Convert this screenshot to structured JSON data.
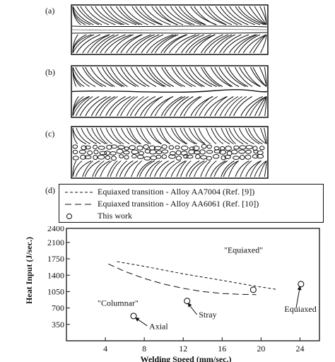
{
  "figure": {
    "panels": [
      {
        "label": "(a)"
      },
      {
        "label": "(b)"
      },
      {
        "label": "(c)"
      },
      {
        "label": "(d)"
      }
    ]
  },
  "legend": {
    "items": [
      {
        "label": "Equiaxed transition - Alloy AA7004 (Ref. [9])",
        "style": "short-dash"
      },
      {
        "label": "Equiaxed transition - Alloy AA6061 (Ref. [10])",
        "style": "long-dash"
      },
      {
        "label": "This work",
        "style": "open-circle"
      }
    ]
  },
  "chart_data": {
    "type": "scatter",
    "xlabel": "Welding Speed (mm/sec.)",
    "ylabel": "Heat Input (J/sec.)",
    "xlim": [
      0,
      26
    ],
    "ylim": [
      0,
      2400
    ],
    "xticks": [
      4,
      8,
      12,
      16,
      20,
      24
    ],
    "yticks": [
      350,
      700,
      1050,
      1400,
      1750,
      2100,
      2400
    ],
    "grid": false,
    "series": [
      {
        "name": "Equiaxed transition - Alloy AA7004 (Ref. [9])",
        "style": "short-dash",
        "x": [
          5.2,
          8,
          12,
          16,
          19,
          21.5
        ],
        "y": [
          1690,
          1590,
          1430,
          1290,
          1180,
          1100
        ]
      },
      {
        "name": "Equiaxed transition - Alloy AA6061 (Ref. [10])",
        "style": "long-dash",
        "x": [
          4.3,
          6,
          8,
          10,
          12,
          14,
          16,
          18,
          19.5
        ],
        "y": [
          1640,
          1480,
          1330,
          1210,
          1120,
          1050,
          1010,
          990,
          985
        ]
      },
      {
        "name": "This work",
        "style": "open-circle",
        "x": [
          6.9,
          12.4,
          19.2,
          24.1
        ],
        "y": [
          530,
          850,
          1090,
          1210
        ]
      }
    ],
    "annotations": [
      {
        "text": "\"Equiaxed\"",
        "x": 16.2,
        "y": 1880
      },
      {
        "text": "\"Columnar\"",
        "x": 3.2,
        "y": 750
      },
      {
        "text": "Axial",
        "x": 8.5,
        "y": 250
      },
      {
        "text": "Stray",
        "x": 13.6,
        "y": 500
      },
      {
        "text": "Equiaxed",
        "x": 22.4,
        "y": 620
      }
    ]
  }
}
